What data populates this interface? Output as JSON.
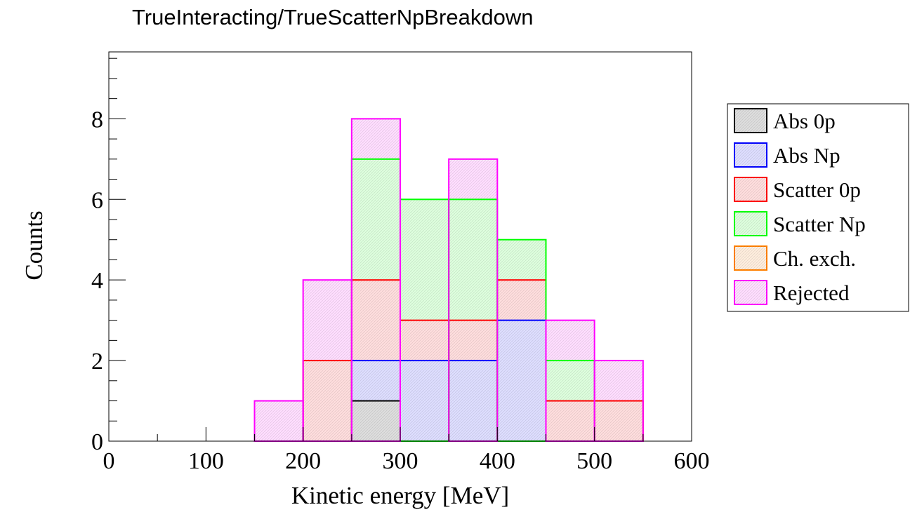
{
  "chart_data": {
    "type": "histogram",
    "stacked": true,
    "title": "TrueInteracting/TrueScatterNpBreakdown",
    "xlabel": "Kinetic energy [MeV]",
    "ylabel": "Counts",
    "xlim": [
      0,
      600
    ],
    "ylim": [
      0,
      9.66
    ],
    "bin_edges": [
      0,
      50,
      100,
      150,
      200,
      250,
      300,
      350,
      400,
      450,
      500,
      550,
      600
    ],
    "x_ticks": [
      0,
      100,
      200,
      300,
      400,
      500,
      600
    ],
    "x_tick_labels": [
      "0",
      "100",
      "200",
      "300",
      "400",
      "500",
      "600"
    ],
    "y_ticks": [
      0,
      2,
      4,
      6,
      8
    ],
    "y_tick_labels": [
      "0",
      "2",
      "4",
      "6",
      "8"
    ],
    "legend_position": "right",
    "series": [
      {
        "name": "Abs 0p",
        "color": "#000000",
        "values": [
          0,
          0,
          0,
          0,
          0,
          1,
          0,
          0,
          0,
          0,
          0,
          0
        ]
      },
      {
        "name": "Abs Np",
        "color": "#0000ff",
        "values": [
          0,
          0,
          0,
          0,
          0,
          1,
          2,
          2,
          3,
          0,
          0,
          0
        ]
      },
      {
        "name": "Scatter 0p",
        "color": "#ff0000",
        "values": [
          0,
          0,
          0,
          0,
          2,
          2,
          1,
          1,
          1,
          1,
          1,
          0
        ]
      },
      {
        "name": "Scatter Np",
        "color": "#00ff00",
        "values": [
          0,
          0,
          0,
          0,
          0,
          3,
          3,
          3,
          1,
          1,
          0,
          0
        ]
      },
      {
        "name": "Ch. exch.",
        "color": "#ff8000",
        "values": [
          0,
          0,
          0,
          0,
          0,
          0,
          0,
          0,
          0,
          0,
          0,
          0
        ]
      },
      {
        "name": "Rejected",
        "color": "#ff00ff",
        "values": [
          0,
          0,
          0,
          1,
          2,
          1,
          0,
          1,
          0,
          1,
          1,
          0
        ]
      }
    ]
  }
}
